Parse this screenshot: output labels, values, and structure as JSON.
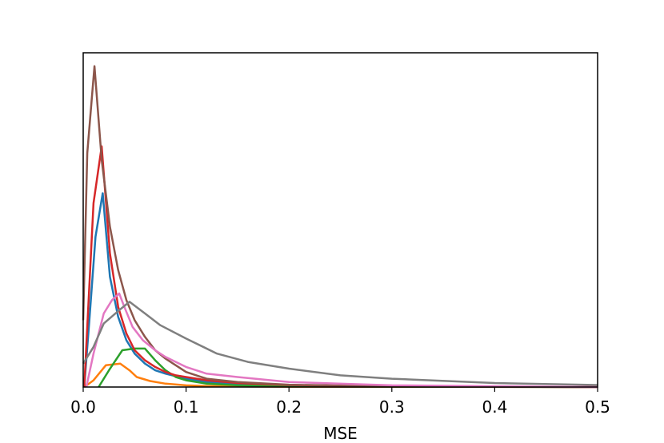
{
  "chart_data": {
    "type": "line",
    "title": "",
    "xlabel": "MSE",
    "ylabel": "",
    "xlim": [
      0,
      0.5
    ],
    "ylim": [
      0,
      100
    ],
    "xticks": [
      "0.0",
      "0.1",
      "0.2",
      "0.3",
      "0.4",
      "0.5"
    ],
    "xtick_values": [
      0.0,
      0.1,
      0.2,
      0.3,
      0.4,
      0.5
    ],
    "yticks_visible": false,
    "grid": false,
    "legend": false,
    "series": [
      {
        "color": "#1f77b4",
        "x": [
          0.001,
          0.006,
          0.012,
          0.019,
          0.026,
          0.034,
          0.042,
          0.05,
          0.06,
          0.07,
          0.08,
          0.1,
          0.12,
          0.15,
          0.2,
          0.3,
          0.5
        ],
        "y": [
          0,
          20,
          45,
          58,
          33,
          21,
          14,
          10,
          7,
          5,
          4,
          2.5,
          1.5,
          0.8,
          0.4,
          0.1,
          0
        ]
      },
      {
        "color": "#ff7f0e",
        "x": [
          0.001,
          0.01,
          0.022,
          0.036,
          0.045,
          0.052,
          0.065,
          0.08,
          0.1,
          0.12,
          0.15,
          0.2,
          0.5
        ],
        "y": [
          0,
          2,
          6.5,
          7,
          5,
          3,
          1.8,
          1,
          0.5,
          0.3,
          0.2,
          0.1,
          0
        ]
      },
      {
        "color": "#2ca02c",
        "x": [
          0.015,
          0.025,
          0.038,
          0.05,
          0.06,
          0.07,
          0.08,
          0.09,
          0.1,
          0.12,
          0.15,
          0.2,
          0.5
        ],
        "y": [
          0,
          5,
          11,
          11.5,
          11.5,
          8,
          5,
          3,
          2,
          1,
          0.5,
          0.2,
          0
        ]
      },
      {
        "color": "#d62728",
        "x": [
          0.001,
          0.01,
          0.018,
          0.026,
          0.034,
          0.042,
          0.05,
          0.06,
          0.07,
          0.08,
          0.09,
          0.1,
          0.12,
          0.15,
          0.2,
          0.3,
          0.5
        ],
        "y": [
          0,
          55,
          72,
          40,
          24,
          16,
          11,
          8,
          6,
          4.5,
          3.5,
          3,
          2,
          1.2,
          0.6,
          0.2,
          0
        ]
      },
      {
        "color": "#8c564b",
        "x": [
          0.0,
          0.004,
          0.011,
          0.018,
          0.026,
          0.034,
          0.042,
          0.05,
          0.06,
          0.07,
          0.08,
          0.09,
          0.1,
          0.11,
          0.12,
          0.15,
          0.2,
          0.3,
          0.5
        ],
        "y": [
          20,
          70,
          96,
          68,
          48,
          35,
          26,
          20,
          15,
          11,
          8.5,
          6.5,
          4.5,
          3.5,
          2.5,
          1.5,
          0.7,
          0.2,
          0
        ]
      },
      {
        "color": "#e377c2",
        "x": [
          0.003,
          0.01,
          0.02,
          0.028,
          0.035,
          0.04,
          0.048,
          0.058,
          0.07,
          0.08,
          0.1,
          0.12,
          0.15,
          0.2,
          0.3,
          0.5
        ],
        "y": [
          0,
          10,
          22,
          26,
          28,
          24,
          18,
          14,
          11,
          9,
          6,
          4,
          3,
          1.5,
          0.5,
          0
        ]
      },
      {
        "color": "#7f7f7f",
        "x": [
          0.0,
          0.01,
          0.02,
          0.035,
          0.045,
          0.06,
          0.075,
          0.1,
          0.13,
          0.16,
          0.2,
          0.25,
          0.3,
          0.4,
          0.5
        ],
        "y": [
          7,
          12,
          19,
          23,
          25.5,
          22,
          18.5,
          14.5,
          10,
          7.5,
          5.5,
          3.5,
          2.5,
          1.2,
          0.6
        ]
      }
    ]
  }
}
